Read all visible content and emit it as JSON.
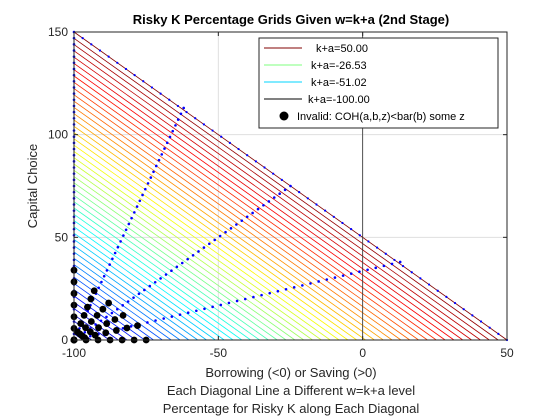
{
  "chart_data": {
    "type": "line",
    "title": "Risky K Percentage Grids Given w=k+a (2nd Stage)",
    "xlabel": "Borrowing (<0) or Saving (>0)",
    "xlabel_lines": [
      "Each Diagonal Line a Different w=k+a level",
      "Percentage for Risky K along Each Diagonal"
    ],
    "ylabel": "Capital Choice",
    "xlim": [
      -100,
      50
    ],
    "ylim": [
      0,
      150
    ],
    "xticks": [
      -100,
      -50,
      0,
      50
    ],
    "yticks": [
      0,
      50,
      100,
      150
    ],
    "xtick_labels": [
      "-100",
      "-50",
      "0",
      "50"
    ],
    "ytick_labels": [
      "0",
      "50",
      "100",
      "150"
    ],
    "grid": true,
    "legend_position": "top-right",
    "colormap": "jet",
    "n_diagonals": 50,
    "w_range": [
      -100,
      50
    ],
    "reference_lines": {
      "x": 0,
      "y": 0
    },
    "legend": [
      {
        "label": "k+a=50.00",
        "color": "#800000",
        "kind": "line"
      },
      {
        "label": "k+a=-26.53",
        "color": "#7fff7f",
        "kind": "line"
      },
      {
        "label": "k+a=-51.02",
        "color": "#00d4ff",
        "kind": "line"
      },
      {
        "label": "k+a=-100.00",
        "color": "#000000",
        "kind": "line"
      },
      {
        "label": "Invalid: COH(a,b,z)<bar(b) some z",
        "color": "#000000",
        "kind": "marker"
      }
    ],
    "dotted_series": [
      {
        "name": "",
        "color": "#0000ff",
        "points": [
          [
            -100,
            0
          ],
          [
            -62,
            113
          ]
        ]
      },
      {
        "name": "",
        "color": "#0000ff",
        "points": [
          [
            -100,
            0
          ],
          [
            -25,
            75
          ]
        ]
      },
      {
        "name": "",
        "color": "#0000ff",
        "points": [
          [
            -100,
            0
          ],
          [
            13,
            38
          ]
        ]
      }
    ],
    "invalid_rays": [
      {
        "end": [
          -100,
          34
        ]
      },
      {
        "end": [
          -93,
          24
        ]
      },
      {
        "end": [
          -88,
          18
        ]
      },
      {
        "end": [
          -83,
          12
        ]
      },
      {
        "end": [
          -78,
          7
        ]
      },
      {
        "end": [
          -75,
          0
        ]
      }
    ]
  }
}
